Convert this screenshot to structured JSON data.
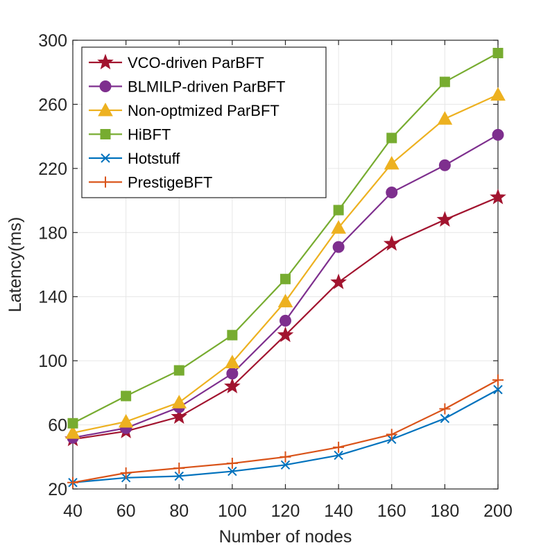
{
  "chart_data": {
    "type": "line",
    "title": "",
    "xlabel": "Number of nodes",
    "ylabel": "Latency(ms)",
    "x": [
      40,
      60,
      80,
      100,
      120,
      140,
      160,
      180,
      200
    ],
    "xlim": [
      40,
      200
    ],
    "ylim": [
      20,
      300
    ],
    "xticks": [
      40,
      60,
      80,
      100,
      120,
      140,
      160,
      180,
      200
    ],
    "yticks": [
      20,
      60,
      100,
      140,
      180,
      220,
      260,
      300
    ],
    "grid": true,
    "legend_position": "top-left",
    "series": [
      {
        "name": "VCO-driven ParBFT",
        "color": "#A2142F",
        "marker": "star",
        "values": [
          51,
          56,
          65,
          84,
          116,
          149,
          173,
          188,
          202
        ]
      },
      {
        "name": "BLMILP-driven ParBFT",
        "color": "#7E2F8E",
        "marker": "circle",
        "values": [
          52,
          58,
          71,
          92,
          125,
          171,
          205,
          222,
          241
        ]
      },
      {
        "name": "Non-optmized ParBFT",
        "color": "#EDB120",
        "marker": "triangle",
        "values": [
          55,
          62,
          74,
          99,
          137,
          183,
          223,
          251,
          266
        ]
      },
      {
        "name": "HiBFT",
        "color": "#77AC30",
        "marker": "square",
        "values": [
          61,
          78,
          94,
          116,
          151,
          194,
          239,
          274,
          292
        ]
      },
      {
        "name": "Hotstuff",
        "color": "#0072BD",
        "marker": "x",
        "values": [
          24,
          27,
          28,
          31,
          35,
          41,
          51,
          64,
          82
        ]
      },
      {
        "name": "PrestigeBFT",
        "color": "#D95319",
        "marker": "plus",
        "values": [
          24,
          30,
          33,
          36,
          40,
          46,
          54,
          70,
          88
        ]
      }
    ]
  }
}
